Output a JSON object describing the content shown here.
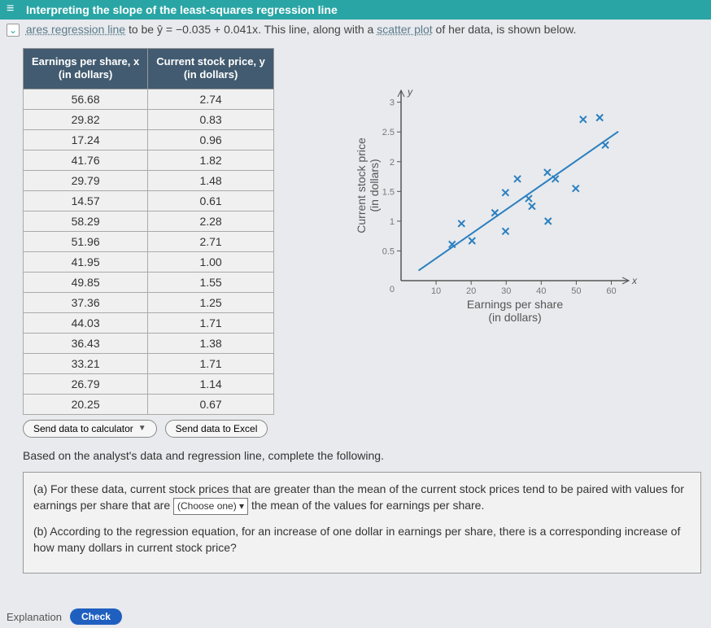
{
  "header": {
    "title": "Interpreting the slope of the least-squares regression line"
  },
  "subline": {
    "pre": "ares regression line",
    "mid": " to be ",
    "eq": "ŷ = −0.035 + 0.041x",
    "post1": ". This line, along with a ",
    "link2": "scatter plot",
    "post2": " of her data, is shown below."
  },
  "table": {
    "col1_header_l1": "Earnings per share, x",
    "col1_header_l2": "(in dollars)",
    "col2_header_l1": "Current stock price, y",
    "col2_header_l2": "(in dollars)",
    "rows": [
      [
        "56.68",
        "2.74"
      ],
      [
        "29.82",
        "0.83"
      ],
      [
        "17.24",
        "0.96"
      ],
      [
        "41.76",
        "1.82"
      ],
      [
        "29.79",
        "1.48"
      ],
      [
        "14.57",
        "0.61"
      ],
      [
        "58.29",
        "2.28"
      ],
      [
        "51.96",
        "2.71"
      ],
      [
        "41.95",
        "1.00"
      ],
      [
        "49.85",
        "1.55"
      ],
      [
        "37.36",
        "1.25"
      ],
      [
        "44.03",
        "1.71"
      ],
      [
        "36.43",
        "1.38"
      ],
      [
        "33.21",
        "1.71"
      ],
      [
        "26.79",
        "1.14"
      ],
      [
        "20.25",
        "0.67"
      ]
    ]
  },
  "buttons": {
    "send_calc": "Send data to calculator",
    "send_excel": "Send data to Excel"
  },
  "chart": {
    "type": "scatter",
    "xlabel_l1": "Earnings per share",
    "xlabel_l2": "(in dollars)",
    "ylabel_l1": "Current stock price",
    "ylabel_l2": "(in dollars)",
    "y_axis_top_label": "y",
    "x_axis_right_label": "x",
    "xlim": [
      0,
      65
    ],
    "ylim": [
      0,
      3.2
    ],
    "xticks": [
      10,
      20,
      30,
      40,
      50,
      60
    ],
    "yticks": [
      0.5,
      1,
      1.5,
      2,
      2.5,
      3
    ],
    "xtick_labels": [
      "10",
      "20",
      "30",
      "40",
      "50",
      "60"
    ],
    "ytick_labels": [
      "0.5",
      "1",
      "1.5",
      "2",
      "2.5",
      "3"
    ],
    "point_color": "#2a7fbf",
    "line_color": "#2a7fbf",
    "axis_color": "#555555",
    "tick_color": "#888888",
    "origin_label": "0",
    "line": {
      "slope": 0.041,
      "intercept": -0.035
    },
    "points": [
      {
        "x": 56.68,
        "y": 2.74
      },
      {
        "x": 29.82,
        "y": 0.83
      },
      {
        "x": 17.24,
        "y": 0.96
      },
      {
        "x": 41.76,
        "y": 1.82
      },
      {
        "x": 29.79,
        "y": 1.48
      },
      {
        "x": 14.57,
        "y": 0.61
      },
      {
        "x": 58.29,
        "y": 2.28
      },
      {
        "x": 51.96,
        "y": 2.71
      },
      {
        "x": 41.95,
        "y": 1.0
      },
      {
        "x": 49.85,
        "y": 1.55
      },
      {
        "x": 37.36,
        "y": 1.25
      },
      {
        "x": 44.03,
        "y": 1.71
      },
      {
        "x": 36.43,
        "y": 1.38
      },
      {
        "x": 33.21,
        "y": 1.71
      },
      {
        "x": 26.79,
        "y": 1.14
      },
      {
        "x": 20.25,
        "y": 0.67
      }
    ]
  },
  "followup": "Based on the analyst's data and regression line, complete the following.",
  "qa": {
    "a_pre": "(a)  For these data, current stock prices that are greater than the mean of the current stock prices tend to be paired with values for earnings per share that are ",
    "a_choose": "(Choose one) ▾",
    "a_post": " the mean of the values for earnings per share.",
    "b": "(b)  According to the regression equation, for an increase of one dollar in earnings per share, there is a corresponding increase of how many dollars in current stock price?"
  },
  "footer": {
    "explanation": "Explanation",
    "check": "Check"
  }
}
